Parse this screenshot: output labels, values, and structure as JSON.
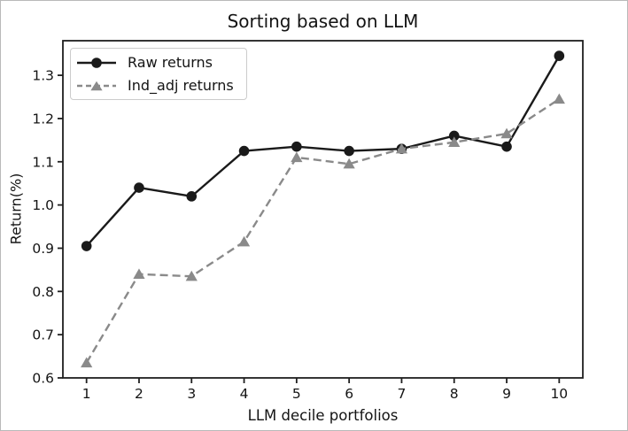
{
  "chart_data": {
    "type": "line",
    "title": "Sorting based on LLM",
    "xlabel": "LLM decile portfolios",
    "ylabel": "Return(%)",
    "grid": false,
    "legend_position": "upper left",
    "x": [
      1,
      2,
      3,
      4,
      5,
      6,
      7,
      8,
      9,
      10
    ],
    "x_tick_labels": [
      "1",
      "2",
      "3",
      "4",
      "5",
      "6",
      "7",
      "8",
      "9",
      "10"
    ],
    "y_ticks": [
      0.6,
      0.7,
      0.8,
      0.9,
      1.0,
      1.1,
      1.2,
      1.3
    ],
    "y_tick_labels": [
      "0.6",
      "0.7",
      "0.8",
      "0.9",
      "1.0",
      "1.1",
      "1.2",
      "1.3"
    ],
    "xlim": [
      0.55,
      10.45
    ],
    "ylim": [
      0.6,
      1.38
    ],
    "axis_color": "#1f1f1f",
    "text_color": "#141414",
    "series": [
      {
        "name": "Raw returns",
        "color": "#1a1a1a",
        "linestyle": "solid",
        "marker": "circle",
        "values": [
          0.905,
          1.04,
          1.02,
          1.125,
          1.135,
          1.125,
          1.13,
          1.16,
          1.135,
          1.345
        ]
      },
      {
        "name": "Ind_adj returns",
        "color": "#8a8a8a",
        "linestyle": "dashed",
        "marker": "triangle",
        "values": [
          0.635,
          0.84,
          0.835,
          0.915,
          1.11,
          1.095,
          1.13,
          1.145,
          1.165,
          1.245
        ]
      }
    ]
  }
}
